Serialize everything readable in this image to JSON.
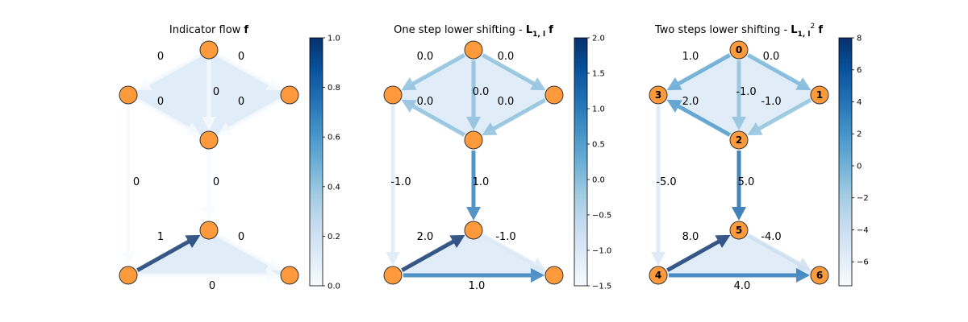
{
  "panels": [
    {
      "title": "Indicator flow",
      "title_math": "f",
      "title_suffix": "",
      "colorbar": {
        "ticks": [
          "0.0",
          "0.2",
          "0.4",
          "0.6",
          "0.8",
          "1.0"
        ],
        "vmin": 0.0,
        "vmax": 1.0
      },
      "node_labels": [
        "",
        "",
        "",
        "",
        "",
        "",
        ""
      ],
      "edges": [
        {
          "from": 0,
          "to": 3,
          "value": 0,
          "label": "0"
        },
        {
          "from": 0,
          "to": 1,
          "value": 0,
          "label": "0"
        },
        {
          "from": 0,
          "to": 2,
          "value": 0,
          "label": "0"
        },
        {
          "from": 3,
          "to": 2,
          "value": 0,
          "label": "0"
        },
        {
          "from": 1,
          "to": 2,
          "value": 0,
          "label": "0"
        },
        {
          "from": 3,
          "to": 4,
          "value": 0,
          "label": "0"
        },
        {
          "from": 2,
          "to": 5,
          "value": 0,
          "label": "0"
        },
        {
          "from": 4,
          "to": 5,
          "value": 1,
          "label": "1"
        },
        {
          "from": 5,
          "to": 6,
          "value": 0,
          "label": "0"
        },
        {
          "from": 4,
          "to": 6,
          "value": 0,
          "label": "0"
        }
      ]
    },
    {
      "title": "One step lower shifting -",
      "title_math": "L",
      "title_sub": "1, l",
      "title_sup": "",
      "title_suffix": "f",
      "colorbar": {
        "ticks": [
          "−1.5",
          "−1.0",
          "−0.5",
          "0.0",
          "0.5",
          "1.0",
          "1.5",
          "2.0"
        ],
        "vmin": -1.5,
        "vmax": 2.0
      },
      "node_labels": [
        "",
        "",
        "",
        "",
        "",
        "",
        ""
      ],
      "edges": [
        {
          "from": 0,
          "to": 3,
          "value": 0.0,
          "label": "0.0"
        },
        {
          "from": 0,
          "to": 1,
          "value": 0.0,
          "label": "0.0"
        },
        {
          "from": 0,
          "to": 2,
          "value": 0.0,
          "label": "0.0"
        },
        {
          "from": 2,
          "to": 3,
          "value": 0.0,
          "label": "0.0"
        },
        {
          "from": 1,
          "to": 2,
          "value": 0.0,
          "label": "0.0"
        },
        {
          "from": 3,
          "to": 4,
          "value": -1.0,
          "label": "-1.0"
        },
        {
          "from": 2,
          "to": 5,
          "value": 1.0,
          "label": "1.0"
        },
        {
          "from": 4,
          "to": 5,
          "value": 2.0,
          "label": "2.0"
        },
        {
          "from": 5,
          "to": 6,
          "value": -1.0,
          "label": "-1.0"
        },
        {
          "from": 4,
          "to": 6,
          "value": 1.0,
          "label": "1.0"
        }
      ]
    },
    {
      "title": "Two steps lower shifting -",
      "title_math": "L",
      "title_sub": "1, l",
      "title_sup": "2",
      "title_suffix": "f",
      "colorbar": {
        "ticks": [
          "−6",
          "−4",
          "−2",
          "0",
          "2",
          "4",
          "6",
          "8"
        ],
        "vmin": -7.5,
        "vmax": 8.0
      },
      "node_labels": [
        "0",
        "1",
        "2",
        "3",
        "4",
        "5",
        "6"
      ],
      "edges": [
        {
          "from": 0,
          "to": 3,
          "value": 1.0,
          "label": "1.0"
        },
        {
          "from": 0,
          "to": 1,
          "value": 0.0,
          "label": "0.0"
        },
        {
          "from": 0,
          "to": 2,
          "value": -1.0,
          "label": "-1.0"
        },
        {
          "from": 2,
          "to": 3,
          "value": 2.0,
          "label": "2.0"
        },
        {
          "from": 1,
          "to": 2,
          "value": -1.0,
          "label": "-1.0"
        },
        {
          "from": 3,
          "to": 4,
          "value": -5.0,
          "label": "-5.0"
        },
        {
          "from": 2,
          "to": 5,
          "value": 5.0,
          "label": "5.0"
        },
        {
          "from": 4,
          "to": 5,
          "value": 8.0,
          "label": "8.0"
        },
        {
          "from": 5,
          "to": 6,
          "value": -4.0,
          "label": "-4.0"
        },
        {
          "from": 4,
          "to": 6,
          "value": 4.0,
          "label": "4.0"
        }
      ]
    }
  ],
  "colors": {
    "node_fill": "#ff9a3c",
    "node_stroke": "#333333",
    "face_fill": "#deebf7",
    "cmap": [
      "#f7fbff",
      "#deebf7",
      "#c6dbef",
      "#9ecae1",
      "#6baed6",
      "#4292c6",
      "#2171b5",
      "#08519c",
      "#08306b"
    ]
  }
}
